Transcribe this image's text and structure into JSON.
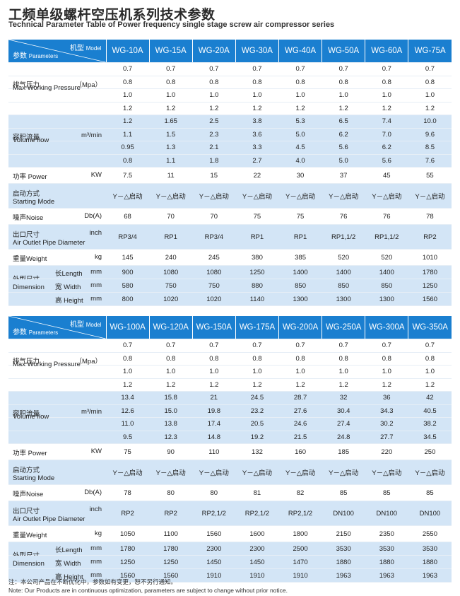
{
  "title": "工频单级螺杆空压机系列技术参数",
  "subtitle": "Technical Parameter Table of Power frequency single stage screw air compressor series",
  "header": {
    "model_cn": "机型",
    "model_en": "Model",
    "param_cn": "参数",
    "param_en": "Parameters"
  },
  "labels": {
    "pressure_cn": "排气压力",
    "pressure_unit": "（Mpa）",
    "pressure_en": "Max Working Pressure",
    "volume_cn": "容积流量",
    "volume_unit": "m³/min",
    "volume_en": "Volume flow",
    "power": "功率 Power",
    "power_unit": "KW",
    "start_cn": "启动方式",
    "start_en": "Starting Mode",
    "noise": "噪声Noise",
    "noise_unit": "Db(A)",
    "outlet_cn": "出口尺寸",
    "outlet_unit": "inch",
    "outlet_en": "Air Outlet Pipe Diameter",
    "weight": "重量Weight",
    "weight_unit": "kg",
    "dim_cn": "外型尺寸",
    "dim_en": "Dimension",
    "length": "长Length",
    "width": "宽 Width",
    "height": "高 Height",
    "mm": "mm"
  },
  "table1": {
    "models": [
      "WG-10A",
      "WG-15A",
      "WG-20A",
      "WG-30A",
      "WG-40A",
      "WG-50A",
      "WG-60A",
      "WG-75A"
    ],
    "pressure": [
      [
        "0.7",
        "0.7",
        "0.7",
        "0.7",
        "0.7",
        "0.7",
        "0.7",
        "0.7"
      ],
      [
        "0.8",
        "0.8",
        "0.8",
        "0.8",
        "0.8",
        "0.8",
        "0.8",
        "0.8"
      ],
      [
        "1.0",
        "1.0",
        "1.0",
        "1.0",
        "1.0",
        "1.0",
        "1.0",
        "1.0"
      ],
      [
        "1.2",
        "1.2",
        "1.2",
        "1.2",
        "1.2",
        "1.2",
        "1.2",
        "1.2"
      ]
    ],
    "volume": [
      [
        "1.2",
        "1.65",
        "2.5",
        "3.8",
        "5.3",
        "6.5",
        "7.4",
        "10.0"
      ],
      [
        "1.1",
        "1.5",
        "2.3",
        "3.6",
        "5.0",
        "6.2",
        "7.0",
        "9.6"
      ],
      [
        "0.95",
        "1.3",
        "2.1",
        "3.3",
        "4.5",
        "5.6",
        "6.2",
        "8.5"
      ],
      [
        "0.8",
        "1.1",
        "1.8",
        "2.7",
        "4.0",
        "5.0",
        "5.6",
        "7.6"
      ]
    ],
    "power": [
      "7.5",
      "11",
      "15",
      "22",
      "30",
      "37",
      "45",
      "55"
    ],
    "start": [
      "Y－△启动",
      "Y－△启动",
      "Y－△启动",
      "Y－△启动",
      "Y－△启动",
      "Y－△启动",
      "Y－△启动",
      "Y－△启动"
    ],
    "noise": [
      "68",
      "70",
      "70",
      "75",
      "75",
      "76",
      "76",
      "78"
    ],
    "outlet": [
      "RP3/4",
      "RP1",
      "RP3/4",
      "RP1",
      "RP1",
      "RP1,1/2",
      "RP1,1/2",
      "RP2"
    ],
    "weight": [
      "145",
      "240",
      "245",
      "380",
      "385",
      "520",
      "520",
      "1010"
    ],
    "length": [
      "900",
      "1080",
      "1080",
      "1250",
      "1400",
      "1400",
      "1400",
      "1780"
    ],
    "width": [
      "580",
      "750",
      "750",
      "880",
      "850",
      "850",
      "850",
      "1250"
    ],
    "height": [
      "800",
      "1020",
      "1020",
      "1140",
      "1300",
      "1300",
      "1300",
      "1560"
    ]
  },
  "table2": {
    "models": [
      "WG-100A",
      "WG-120A",
      "WG-150A",
      "WG-175A",
      "WG-200A",
      "WG-250A",
      "WG-300A",
      "WG-350A"
    ],
    "pressure": [
      [
        "0.7",
        "0.7",
        "0.7",
        "0.7",
        "0.7",
        "0.7",
        "0.7",
        "0.7"
      ],
      [
        "0.8",
        "0.8",
        "0.8",
        "0.8",
        "0.8",
        "0.8",
        "0.8",
        "0.8"
      ],
      [
        "1.0",
        "1.0",
        "1.0",
        "1.0",
        "1.0",
        "1.0",
        "1.0",
        "1.0"
      ],
      [
        "1.2",
        "1.2",
        "1.2",
        "1.2",
        "1.2",
        "1.2",
        "1.2",
        "1.2"
      ]
    ],
    "volume": [
      [
        "13.4",
        "15.8",
        "21",
        "24.5",
        "28.7",
        "32",
        "36",
        "42"
      ],
      [
        "12.6",
        "15.0",
        "19.8",
        "23.2",
        "27.6",
        "30.4",
        "34.3",
        "40.5"
      ],
      [
        "11.0",
        "13.8",
        "17.4",
        "20.5",
        "24.6",
        "27.4",
        "30.2",
        "38.2"
      ],
      [
        "9.5",
        "12.3",
        "14.8",
        "19.2",
        "21.5",
        "24.8",
        "27.7",
        "34.5"
      ]
    ],
    "power": [
      "75",
      "90",
      "110",
      "132",
      "160",
      "185",
      "220",
      "250"
    ],
    "start": [
      "Y－△启动",
      "Y－△启动",
      "Y－△启动",
      "Y－△启动",
      "Y－△启动",
      "Y－△启动",
      "Y－△启动",
      "Y－△启动"
    ],
    "noise": [
      "78",
      "80",
      "80",
      "81",
      "82",
      "85",
      "85",
      "85"
    ],
    "outlet": [
      "RP2",
      "RP2",
      "RP2,1/2",
      "RP2,1/2",
      "RP2,1/2",
      "DN100",
      "DN100",
      "DN100"
    ],
    "weight": [
      "1050",
      "1100",
      "1560",
      "1600",
      "1800",
      "2150",
      "2350",
      "2550"
    ],
    "length": [
      "1780",
      "1780",
      "2300",
      "2300",
      "2500",
      "3530",
      "3530",
      "3530"
    ],
    "width": [
      "1250",
      "1250",
      "1450",
      "1450",
      "1470",
      "1880",
      "1880",
      "1880"
    ],
    "height": [
      "1560",
      "1560",
      "1910",
      "1910",
      "1910",
      "1963",
      "1963",
      "1963"
    ]
  },
  "footnote_cn": "注：本公司产品在不断优化中，参数如有变更，恕不另行通知。",
  "footnote_en": "Note: Our Products are in continuous optimization, parameters are subject to change without prior notice."
}
